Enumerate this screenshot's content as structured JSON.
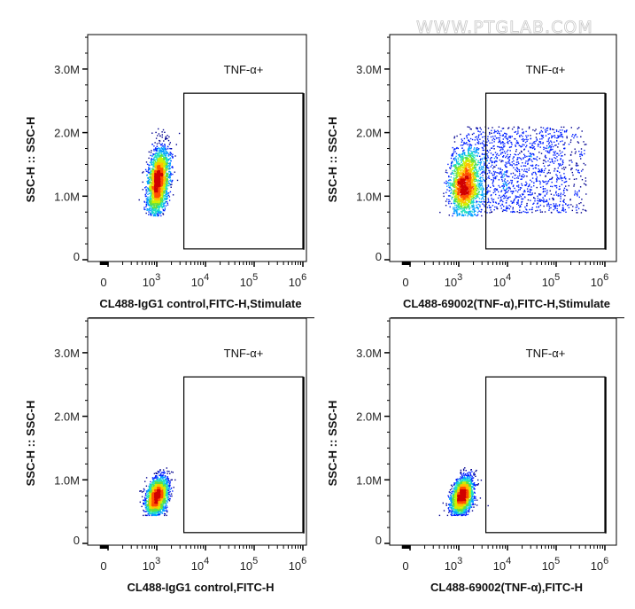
{
  "watermark": "WWW.PTGLAB.COM",
  "colors": {
    "frame": "#000000",
    "density_colormap": [
      "#00008f",
      "#0020ff",
      "#00a0ff",
      "#20e0c0",
      "#60e040",
      "#d0f000",
      "#ffc000",
      "#ff5000",
      "#d00000"
    ]
  },
  "chart_data": [
    {
      "type": "scatter",
      "subtype": "flow-cytometry-density-dot-plot",
      "xlabel": "CL488-IgG1 control,FITC-H,Stimulate",
      "ylabel": "SSC-H :: SSC-H",
      "x_scale": "logicle",
      "xlim": [
        0,
        1000000
      ],
      "ylim": [
        0,
        3.6
      ],
      "y_unit": "M",
      "x_ticks": [
        {
          "value": 0,
          "label": "0"
        },
        {
          "value": 1000,
          "label": "10",
          "exp": "3"
        },
        {
          "value": 10000,
          "label": "10",
          "exp": "4"
        },
        {
          "value": 100000,
          "label": "10",
          "exp": "5"
        },
        {
          "value": 1000000,
          "label": "10",
          "exp": "6"
        }
      ],
      "y_ticks": [
        {
          "value": 0,
          "label": "0"
        },
        {
          "value": 1,
          "label": "1.0M"
        },
        {
          "value": 2,
          "label": "2.0M"
        },
        {
          "value": 3,
          "label": "3.0M"
        }
      ],
      "gate": {
        "label": "TNF-α+",
        "x_range": [
          3600,
          1000000
        ],
        "y_range": [
          0.17,
          2.62
        ]
      },
      "populations": [
        {
          "x_center": 1050,
          "x_log_sd": 0.11,
          "y_center": 1.25,
          "y_sd": 0.28,
          "y_min": 0.7,
          "y_max": 2.1,
          "xy_correlation": 0.35,
          "share": 1
        }
      ],
      "events": 2600
    },
    {
      "type": "scatter",
      "subtype": "flow-cytometry-density-dot-plot",
      "xlabel": "CL488-69002(TNF-α),FITC-H,Stimulate",
      "ylabel": "SSC-H :: SSC-H",
      "x_scale": "logicle",
      "xlim": [
        0,
        1000000
      ],
      "ylim": [
        0,
        3.6
      ],
      "y_unit": "M",
      "x_ticks": [
        {
          "value": 0,
          "label": "0"
        },
        {
          "value": 1000,
          "label": "10",
          "exp": "3"
        },
        {
          "value": 10000,
          "label": "10",
          "exp": "4"
        },
        {
          "value": 100000,
          "label": "10",
          "exp": "5"
        },
        {
          "value": 1000000,
          "label": "10",
          "exp": "6"
        }
      ],
      "y_ticks": [
        {
          "value": 0,
          "label": "0"
        },
        {
          "value": 1,
          "label": "1.0M"
        },
        {
          "value": 2,
          "label": "2.0M"
        },
        {
          "value": 3,
          "label": "3.0M"
        }
      ],
      "gate": {
        "label": "TNF-α+",
        "x_range": [
          3600,
          1000000
        ],
        "y_range": [
          0.17,
          2.62
        ]
      },
      "populations": [
        {
          "x_center": 1300,
          "x_log_sd": 0.15,
          "y_center": 1.2,
          "y_sd": 0.28,
          "y_min": 0.7,
          "y_max": 2.1,
          "xy_correlation": 0.1,
          "share": 0.55
        },
        {
          "distribution": "uniform",
          "x_range": [
            1500,
            400000
          ],
          "y_range": [
            0.75,
            2.1
          ],
          "share": 0.45
        }
      ],
      "events": 3600
    },
    {
      "type": "scatter",
      "subtype": "flow-cytometry-density-dot-plot",
      "xlabel": "CL488-IgG1 control,FITC-H",
      "ylabel": "SSC-H :: SSC-H",
      "x_scale": "logicle",
      "xlim": [
        0,
        1000000
      ],
      "ylim": [
        0,
        3.6
      ],
      "y_unit": "M",
      "x_ticks": [
        {
          "value": 0,
          "label": "0"
        },
        {
          "value": 1000,
          "label": "10",
          "exp": "3"
        },
        {
          "value": 10000,
          "label": "10",
          "exp": "4"
        },
        {
          "value": 100000,
          "label": "10",
          "exp": "5"
        },
        {
          "value": 1000000,
          "label": "10",
          "exp": "6"
        }
      ],
      "y_ticks": [
        {
          "value": 0,
          "label": "0"
        },
        {
          "value": 1,
          "label": "1.0M"
        },
        {
          "value": 2,
          "label": "2.0M"
        },
        {
          "value": 3,
          "label": "3.0M"
        }
      ],
      "gate": {
        "label": "TNF-α+",
        "x_range": [
          3600,
          1000000
        ],
        "y_range": [
          0.17,
          2.62
        ]
      },
      "populations": [
        {
          "x_center": 1000,
          "x_log_sd": 0.11,
          "y_center": 0.75,
          "y_sd": 0.15,
          "y_min": 0.45,
          "y_max": 1.2,
          "xy_correlation": 0.35,
          "share": 1
        }
      ],
      "events": 2400
    },
    {
      "type": "scatter",
      "subtype": "flow-cytometry-density-dot-plot",
      "xlabel": "CL488-69002(TNF-α),FITC-H",
      "ylabel": "SSC-H :: SSC-H",
      "x_scale": "logicle",
      "xlim": [
        0,
        1000000
      ],
      "ylim": [
        0,
        3.6
      ],
      "y_unit": "M",
      "x_ticks": [
        {
          "value": 0,
          "label": "0"
        },
        {
          "value": 1000,
          "label": "10",
          "exp": "3"
        },
        {
          "value": 10000,
          "label": "10",
          "exp": "4"
        },
        {
          "value": 100000,
          "label": "10",
          "exp": "5"
        },
        {
          "value": 1000000,
          "label": "10",
          "exp": "6"
        }
      ],
      "y_ticks": [
        {
          "value": 0,
          "label": "0"
        },
        {
          "value": 1,
          "label": "1.0M"
        },
        {
          "value": 2,
          "label": "2.0M"
        },
        {
          "value": 3,
          "label": "3.0M"
        }
      ],
      "gate": {
        "label": "TNF-α+",
        "x_range": [
          3600,
          1000000
        ],
        "y_range": [
          0.17,
          2.62
        ]
      },
      "populations": [
        {
          "x_center": 1150,
          "x_log_sd": 0.11,
          "y_center": 0.75,
          "y_sd": 0.15,
          "y_min": 0.45,
          "y_max": 1.2,
          "xy_correlation": 0.35,
          "share": 1
        }
      ],
      "events": 2400
    }
  ]
}
